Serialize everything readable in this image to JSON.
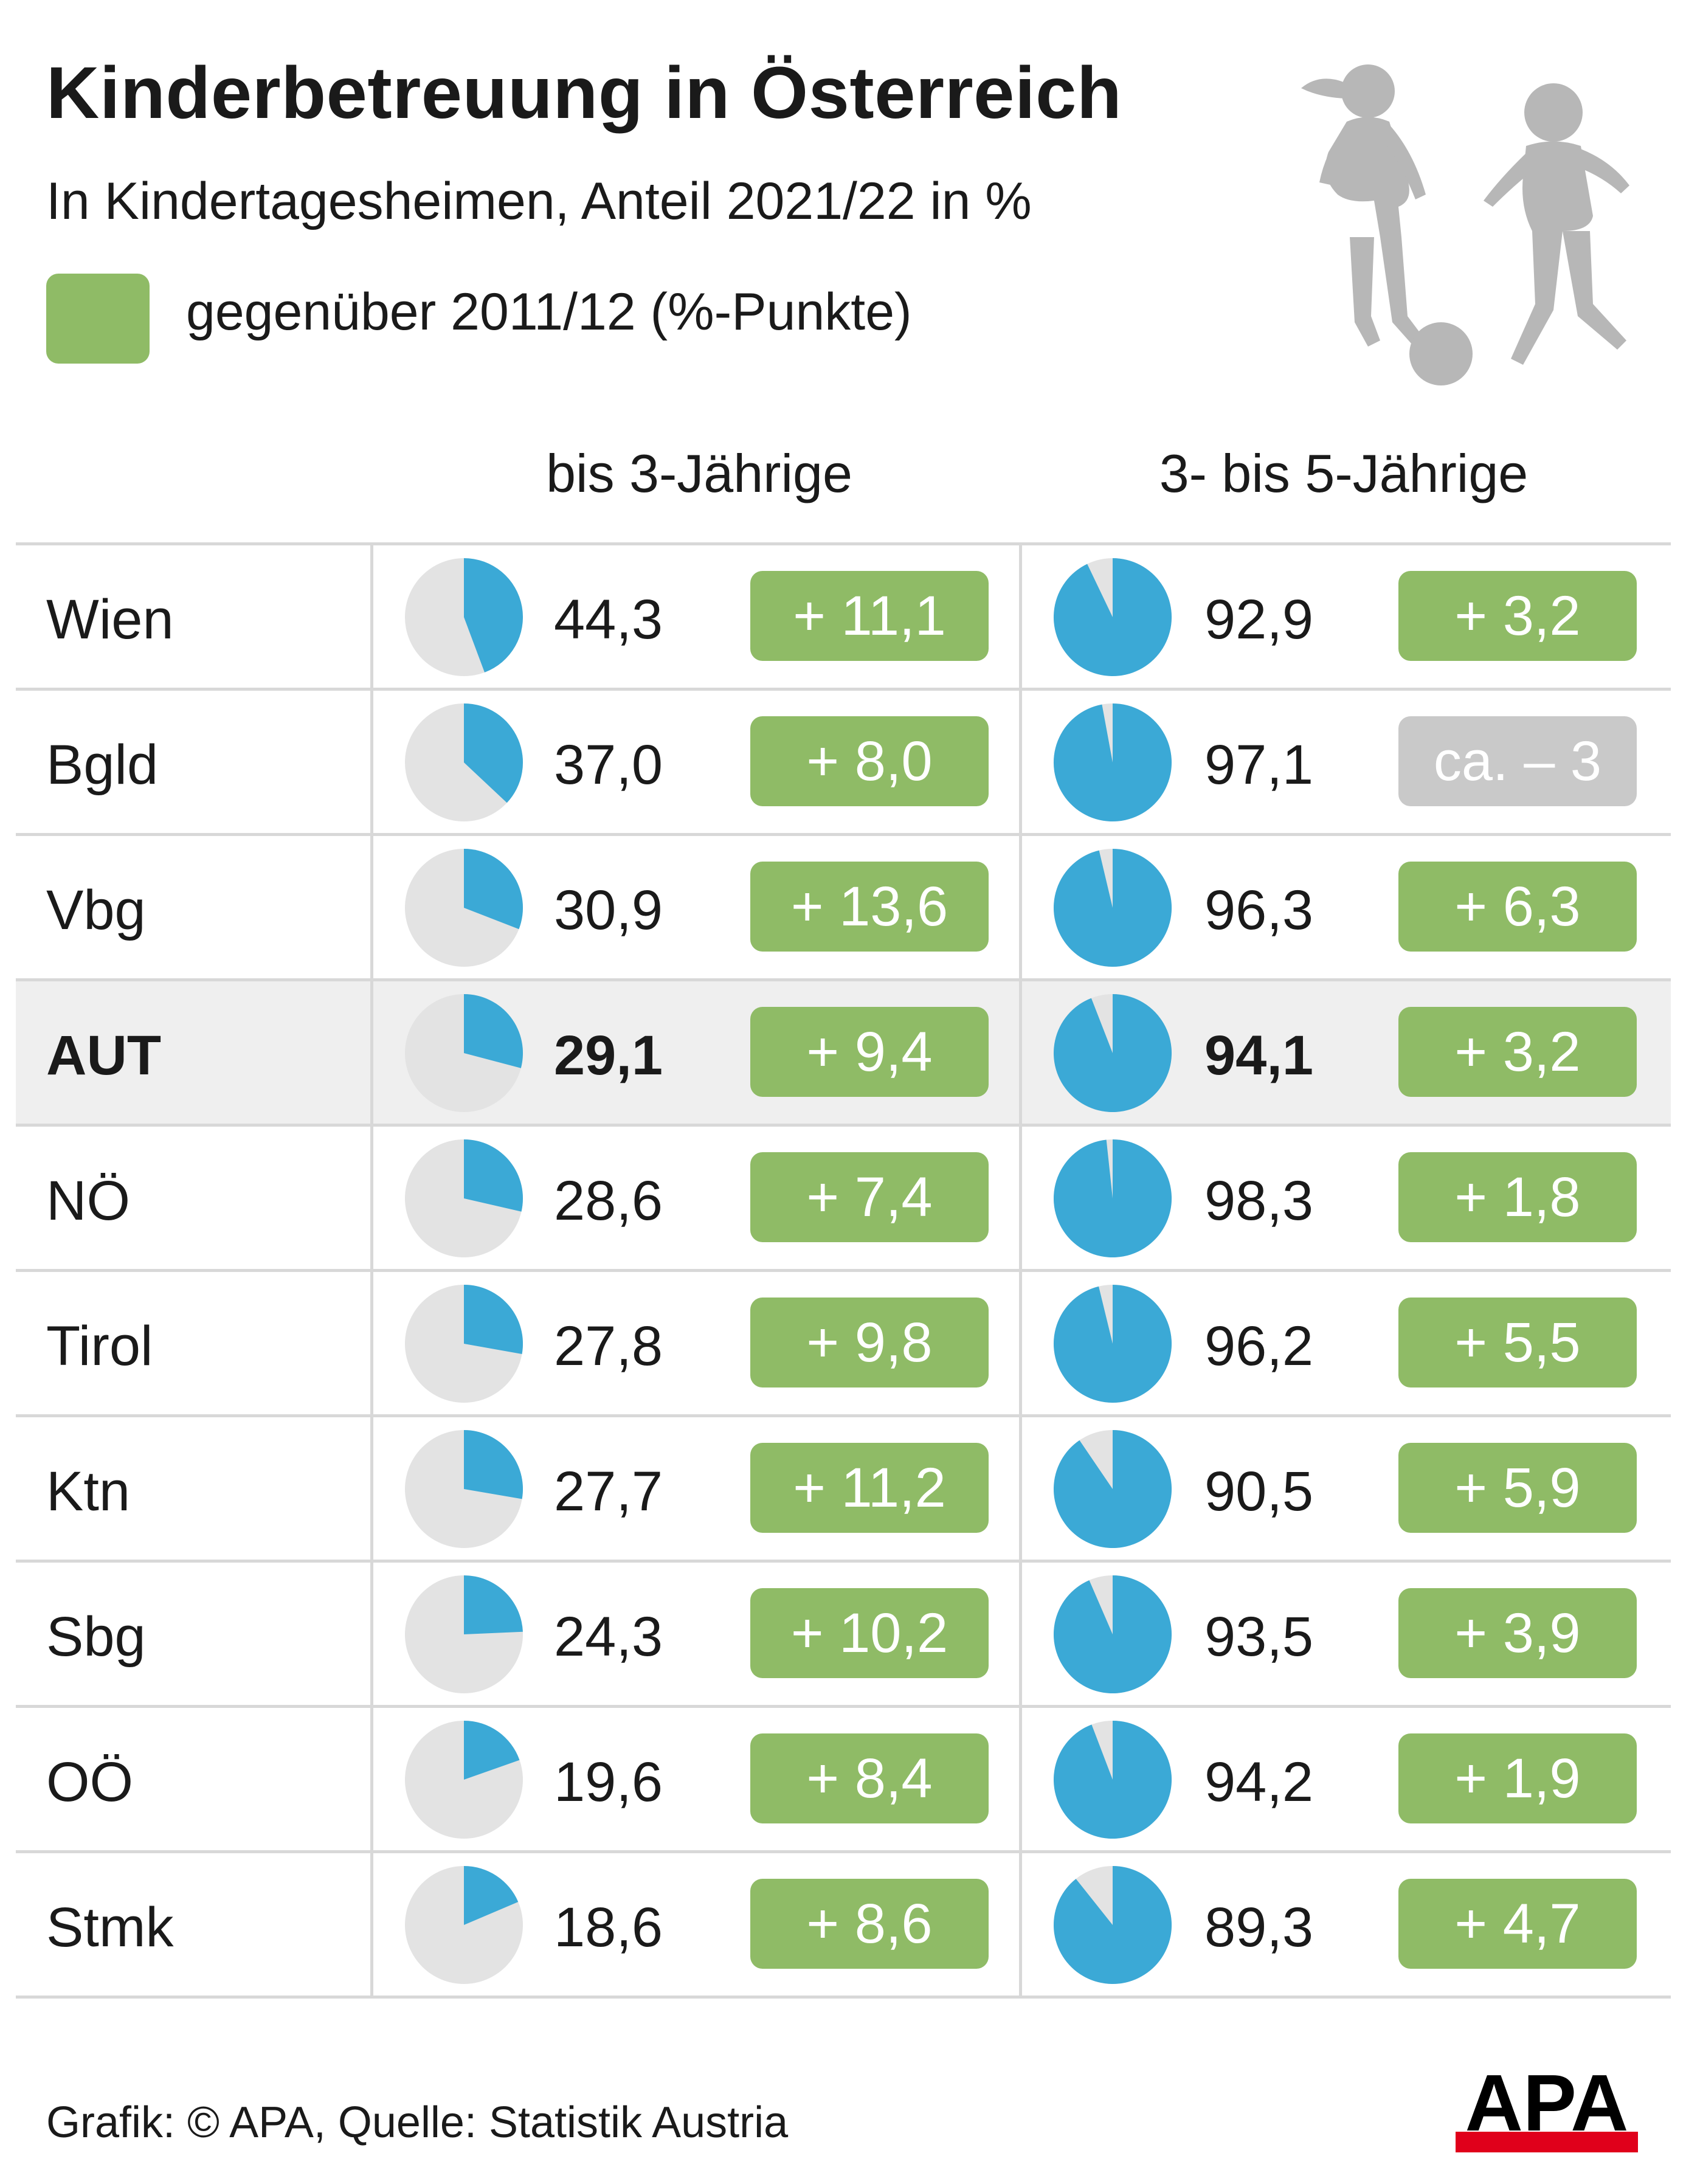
{
  "header": {
    "title": "Kinderbetreuung in Österreich",
    "subtitle": "In Kindertagesheimen, Anteil 2021/22 in %",
    "legend_label": "gegenüber 2011/12 (%-Punkte)"
  },
  "columns": {
    "group1": "bis 3-Jährige",
    "group2": "3- bis 5-Jährige"
  },
  "rows": [
    {
      "region": "Wien",
      "v1": "44,3",
      "d1": "+ 11,1",
      "v2": "92,9",
      "d2": "+ 3,2"
    },
    {
      "region": "Bgld",
      "v1": "37,0",
      "d1": "+ 8,0",
      "v2": "97,1",
      "d2": "ca. – 3"
    },
    {
      "region": "Vbg",
      "v1": "30,9",
      "d1": "+ 13,6",
      "v2": "96,3",
      "d2": "+ 6,3"
    },
    {
      "region": "AUT",
      "v1": "29,1",
      "d1": "+ 9,4",
      "v2": "94,1",
      "d2": "+ 3,2"
    },
    {
      "region": "NÖ",
      "v1": "28,6",
      "d1": "+ 7,4",
      "v2": "98,3",
      "d2": "+ 1,8"
    },
    {
      "region": "Tirol",
      "v1": "27,8",
      "d1": "+ 9,8",
      "v2": "96,2",
      "d2": "+ 5,5"
    },
    {
      "region": "Ktn",
      "v1": "27,7",
      "d1": "+ 11,2",
      "v2": "90,5",
      "d2": "+ 5,9"
    },
    {
      "region": "Sbg",
      "v1": "24,3",
      "d1": "+ 10,2",
      "v2": "93,5",
      "d2": "+ 3,9"
    },
    {
      "region": "OÖ",
      "v1": "19,6",
      "d1": "+ 8,4",
      "v2": "94,2",
      "d2": "+ 1,9"
    },
    {
      "region": "Stmk",
      "v1": "18,6",
      "d1": "+ 8,6",
      "v2": "89,3",
      "d2": "+ 4,7"
    }
  ],
  "chart_data": {
    "type": "table",
    "title": "Kinderbetreuung in Österreich",
    "subtitle": "In Kindertagesheimen, Anteil 2021/22 in %",
    "categories": [
      "Wien",
      "Bgld",
      "Vbg",
      "AUT",
      "NÖ",
      "Tirol",
      "Ktn",
      "Sbg",
      "OÖ",
      "Stmk"
    ],
    "highlight": "AUT",
    "series": [
      {
        "name": "bis 3-Jährige",
        "values": [
          44.3,
          37.0,
          30.9,
          29.1,
          28.6,
          27.8,
          27.7,
          24.3,
          19.6,
          18.6
        ],
        "change": [
          11.1,
          8.0,
          13.6,
          9.4,
          7.4,
          9.8,
          11.2,
          10.2,
          8.4,
          8.6
        ]
      },
      {
        "name": "3- bis 5-Jährige",
        "values": [
          92.9,
          97.1,
          96.3,
          94.1,
          98.3,
          96.2,
          90.5,
          93.5,
          94.2,
          89.3
        ],
        "change": [
          3.2,
          -3,
          6.3,
          3.2,
          1.8,
          5.5,
          5.9,
          3.9,
          1.9,
          4.7
        ]
      }
    ],
    "change_label": "gegenüber 2011/12 (%-Punkte)",
    "colors": {
      "share": "#3ba9d6",
      "rest": "#e3e3e3",
      "positive_change": "#8fbb66",
      "approx_change": "#c9c9c9",
      "highlight_row": "#efefef"
    }
  },
  "footer": {
    "source": "Grafik: © APA, Quelle: Statistik Austria",
    "logo_text": "APA"
  }
}
